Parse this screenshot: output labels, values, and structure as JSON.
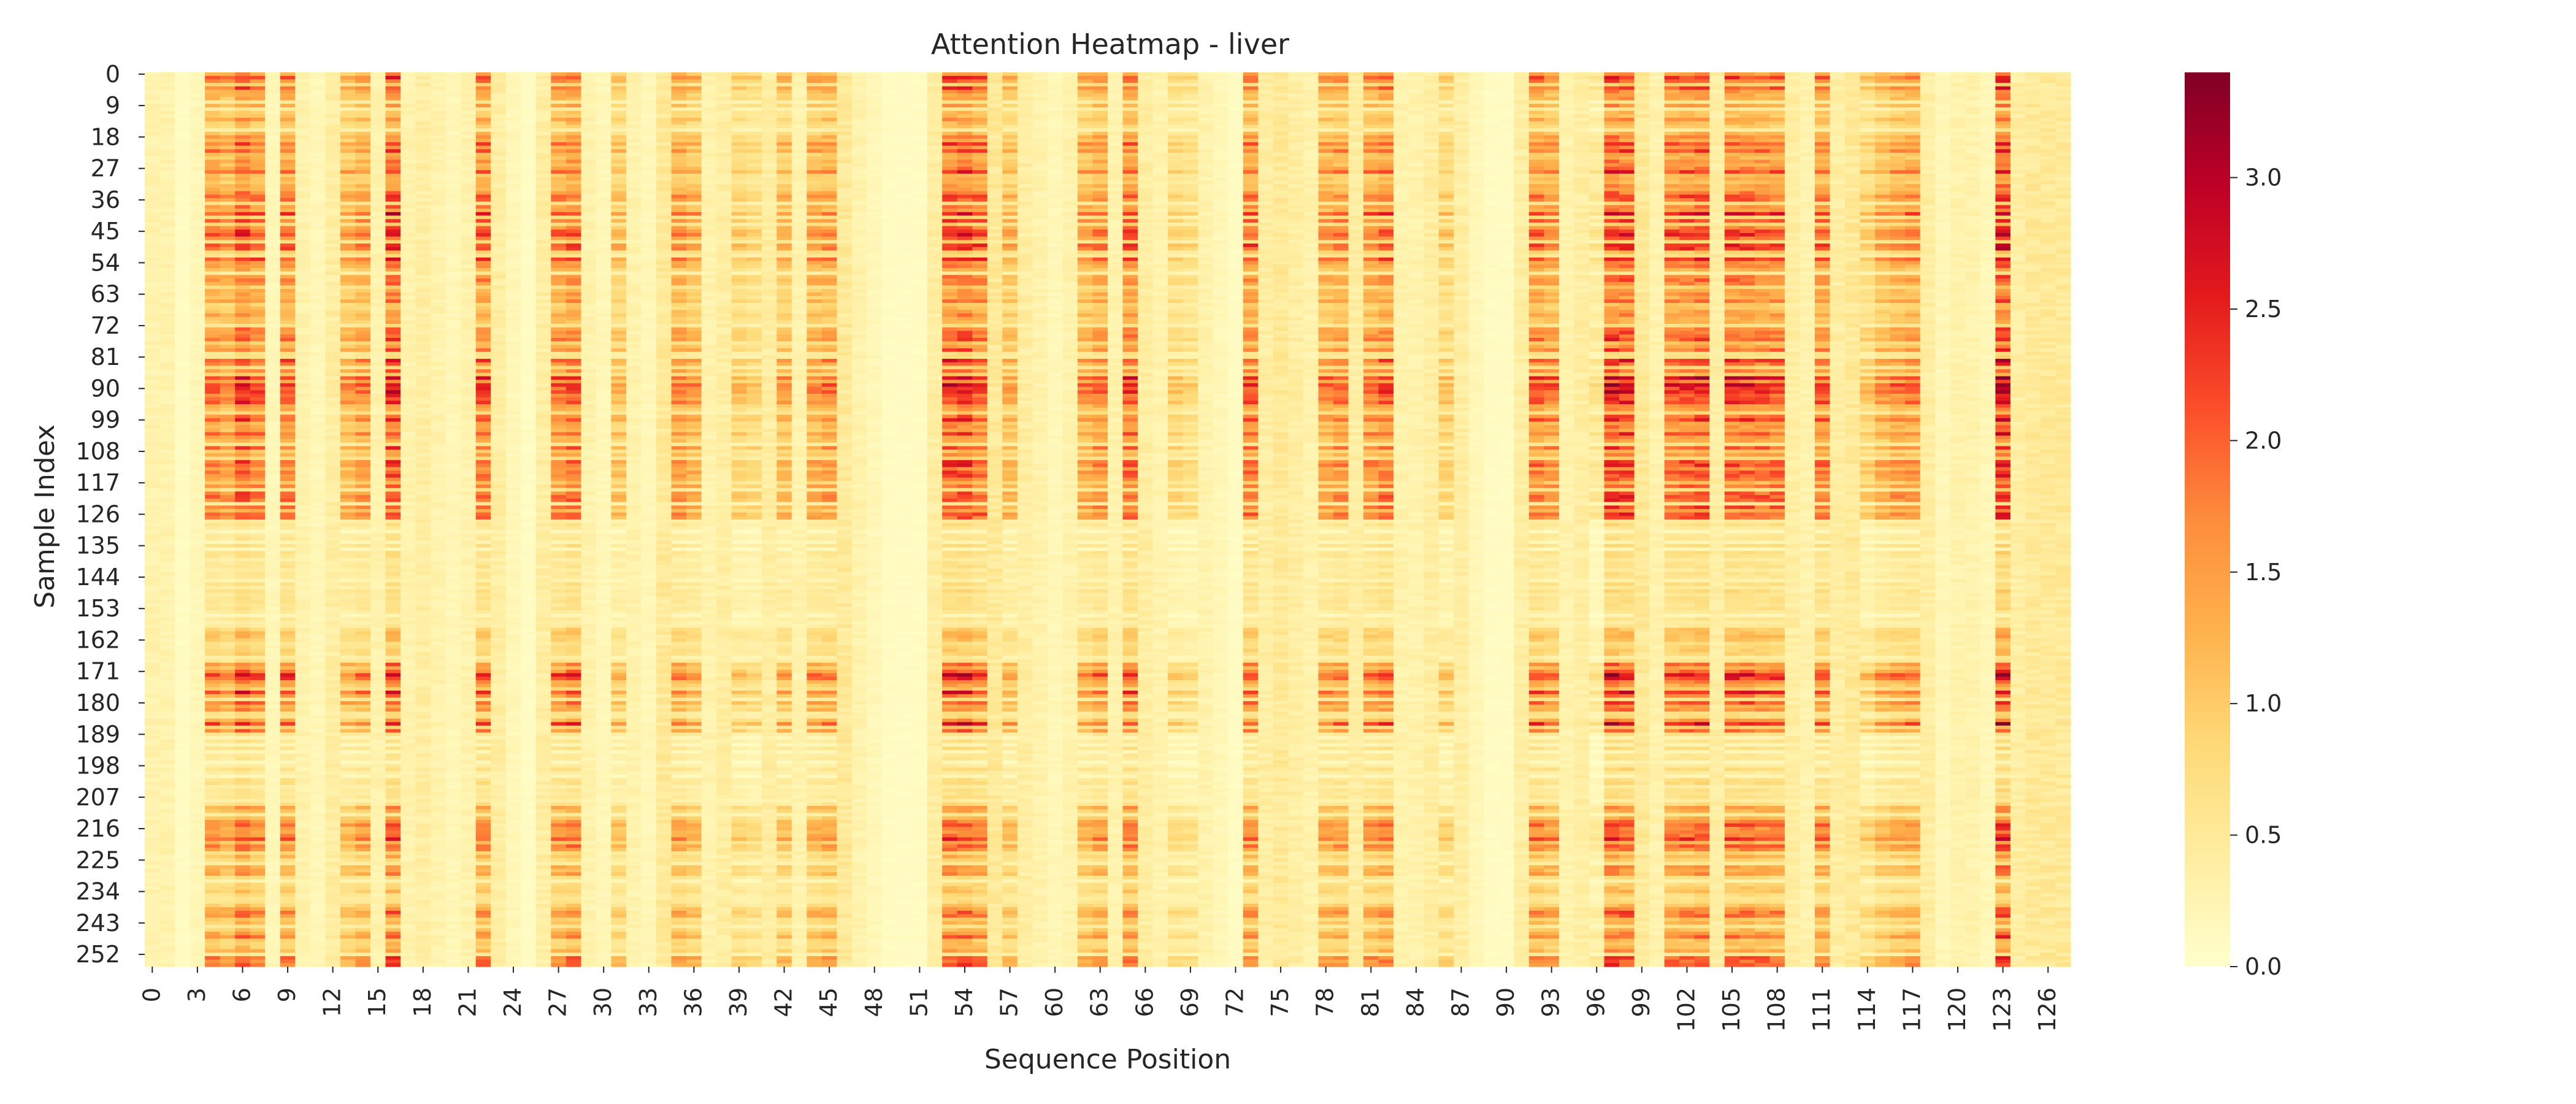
{
  "chart_data": {
    "type": "heatmap",
    "title": "Attention Heatmap - liver",
    "xlabel": "Sequence Position",
    "ylabel": "Sample Index",
    "n_rows": 256,
    "n_cols": 128,
    "x_ticks": [
      "0",
      "3",
      "6",
      "9",
      "12",
      "15",
      "18",
      "21",
      "24",
      "27",
      "30",
      "33",
      "36",
      "39",
      "42",
      "45",
      "48",
      "51",
      "54",
      "57",
      "60",
      "63",
      "66",
      "69",
      "72",
      "75",
      "78",
      "81",
      "84",
      "87",
      "90",
      "93",
      "96",
      "99",
      "102",
      "105",
      "108",
      "111",
      "114",
      "117",
      "120",
      "123",
      "126"
    ],
    "y_ticks": [
      "0",
      "9",
      "18",
      "27",
      "36",
      "45",
      "54",
      "63",
      "72",
      "81",
      "90",
      "99",
      "108",
      "117",
      "126",
      "135",
      "144",
      "153",
      "162",
      "171",
      "180",
      "189",
      "198",
      "207",
      "216",
      "225",
      "234",
      "243",
      "252"
    ],
    "colorbar": {
      "colormap": "YlOrRd",
      "vmin": 0.0,
      "vmax": 3.4,
      "ticks": [
        "0.0",
        "0.5",
        "1.0",
        "1.5",
        "2.0",
        "2.5",
        "3.0"
      ]
    },
    "column_peak_attention": [
      [
        0,
        0.3
      ],
      [
        1,
        0.3
      ],
      [
        2,
        0.1
      ],
      [
        3,
        0.2
      ],
      [
        4,
        1.8
      ],
      [
        5,
        1.6
      ],
      [
        6,
        2.2
      ],
      [
        7,
        1.9
      ],
      [
        8,
        0.2
      ],
      [
        9,
        1.9
      ],
      [
        10,
        0.3
      ],
      [
        11,
        0.2
      ],
      [
        12,
        0.4
      ],
      [
        13,
        1.4
      ],
      [
        14,
        1.6
      ],
      [
        15,
        0.3
      ],
      [
        16,
        2.3
      ],
      [
        17,
        0.3
      ],
      [
        18,
        0.4
      ],
      [
        19,
        0.3
      ],
      [
        20,
        0.2
      ],
      [
        21,
        0.3
      ],
      [
        22,
        2.0
      ],
      [
        23,
        0.4
      ],
      [
        24,
        0.2
      ],
      [
        25,
        0.1
      ],
      [
        26,
        0.4
      ],
      [
        27,
        1.8
      ],
      [
        28,
        2.0
      ],
      [
        29,
        0.3
      ],
      [
        30,
        0.2
      ],
      [
        31,
        1.2
      ],
      [
        32,
        0.3
      ],
      [
        33,
        0.2
      ],
      [
        34,
        0.5
      ],
      [
        35,
        1.6
      ],
      [
        36,
        1.4
      ],
      [
        37,
        0.3
      ],
      [
        38,
        0.4
      ],
      [
        39,
        1.0
      ],
      [
        40,
        0.9
      ],
      [
        41,
        0.4
      ],
      [
        42,
        1.3
      ],
      [
        43,
        0.3
      ],
      [
        44,
        1.5
      ],
      [
        45,
        1.6
      ],
      [
        46,
        0.5
      ],
      [
        47,
        0.3
      ],
      [
        48,
        0.2
      ],
      [
        49,
        0.1
      ],
      [
        50,
        0.1
      ],
      [
        51,
        0.1
      ],
      [
        52,
        0.4
      ],
      [
        53,
        2.2
      ],
      [
        54,
        2.3
      ],
      [
        55,
        2.0
      ],
      [
        56,
        0.5
      ],
      [
        57,
        1.3
      ],
      [
        58,
        0.4
      ],
      [
        59,
        0.3
      ],
      [
        60,
        0.2
      ],
      [
        61,
        0.3
      ],
      [
        62,
        1.5
      ],
      [
        63,
        1.7
      ],
      [
        64,
        0.3
      ],
      [
        65,
        2.0
      ],
      [
        66,
        0.4
      ],
      [
        67,
        0.3
      ],
      [
        68,
        0.9
      ],
      [
        69,
        0.8
      ],
      [
        70,
        0.3
      ],
      [
        71,
        0.2
      ],
      [
        72,
        0.1
      ],
      [
        73,
        1.9
      ],
      [
        74,
        0.4
      ],
      [
        75,
        0.5
      ],
      [
        76,
        0.4
      ],
      [
        77,
        0.3
      ],
      [
        78,
        1.6
      ],
      [
        79,
        1.7
      ],
      [
        80,
        0.4
      ],
      [
        81,
        1.7
      ],
      [
        82,
        1.9
      ],
      [
        83,
        0.3
      ],
      [
        84,
        0.3
      ],
      [
        85,
        0.4
      ],
      [
        86,
        1.0
      ],
      [
        87,
        0.4
      ],
      [
        88,
        0.2
      ],
      [
        89,
        0.1
      ],
      [
        90,
        0.1
      ],
      [
        91,
        0.4
      ],
      [
        92,
        1.9
      ],
      [
        93,
        1.7
      ],
      [
        94,
        0.3
      ],
      [
        95,
        0.4
      ],
      [
        96,
        0.6
      ],
      [
        97,
        2.4
      ],
      [
        98,
        2.3
      ],
      [
        99,
        0.5
      ],
      [
        100,
        0.3
      ],
      [
        101,
        2.0
      ],
      [
        102,
        2.1
      ],
      [
        103,
        2.2
      ],
      [
        104,
        0.4
      ],
      [
        105,
        2.1
      ],
      [
        106,
        2.1
      ],
      [
        107,
        2.0
      ],
      [
        108,
        2.0
      ],
      [
        109,
        0.4
      ],
      [
        110,
        0.3
      ],
      [
        111,
        1.9
      ],
      [
        112,
        0.4
      ],
      [
        113,
        0.5
      ],
      [
        114,
        1.0
      ],
      [
        115,
        1.4
      ],
      [
        116,
        1.6
      ],
      [
        117,
        1.7
      ],
      [
        118,
        0.4
      ],
      [
        119,
        0.2
      ],
      [
        120,
        0.3
      ],
      [
        121,
        0.3
      ],
      [
        122,
        0.2
      ],
      [
        123,
        2.6
      ],
      [
        124,
        0.4
      ],
      [
        125,
        0.5
      ],
      [
        126,
        0.5
      ],
      [
        127,
        0.5
      ]
    ],
    "row_band_scale": [
      [
        0,
        1.0
      ],
      [
        8,
        0.7
      ],
      [
        18,
        1.0
      ],
      [
        40,
        1.15
      ],
      [
        54,
        0.8
      ],
      [
        72,
        0.9
      ],
      [
        75,
        1.2
      ],
      [
        100,
        0.95
      ],
      [
        126,
        1.0
      ],
      [
        128,
        0.35
      ],
      [
        158,
        0.55
      ],
      [
        168,
        1.15
      ],
      [
        190,
        0.35
      ],
      [
        210,
        0.75
      ],
      [
        214,
        1.0
      ],
      [
        230,
        0.5
      ],
      [
        238,
        0.9
      ],
      [
        256,
        0.9
      ]
    ]
  }
}
